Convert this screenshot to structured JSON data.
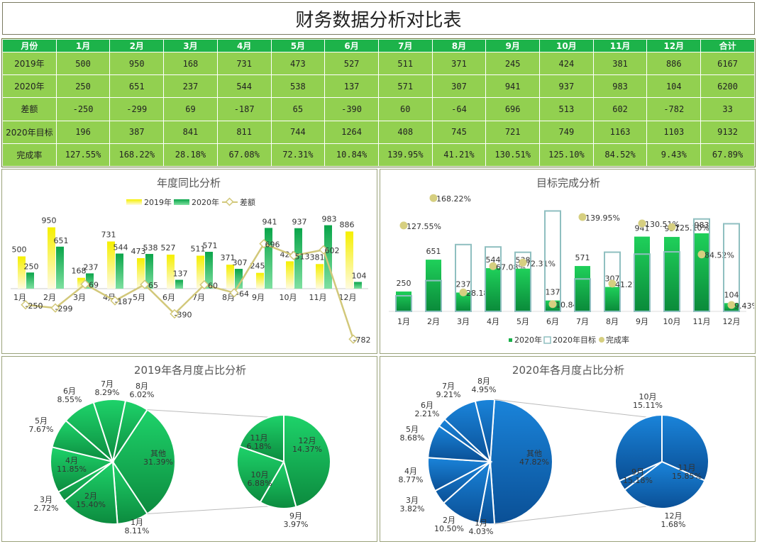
{
  "title": "财务数据分析对比表",
  "table": {
    "headers": [
      "月份",
      "1月",
      "2月",
      "3月",
      "4月",
      "5月",
      "6月",
      "7月",
      "8月",
      "9月",
      "10月",
      "11月",
      "12月",
      "合计"
    ],
    "rows": [
      {
        "label": "2019年",
        "values": [
          "500",
          "950",
          "168",
          "731",
          "473",
          "527",
          "511",
          "371",
          "245",
          "424",
          "381",
          "886",
          "6167"
        ]
      },
      {
        "label": "2020年",
        "values": [
          "250",
          "651",
          "237",
          "544",
          "538",
          "137",
          "571",
          "307",
          "941",
          "937",
          "983",
          "104",
          "6200"
        ]
      },
      {
        "label": "差额",
        "values": [
          "-250",
          "-299",
          "69",
          "-187",
          "65",
          "-390",
          "60",
          "-64",
          "696",
          "513",
          "602",
          "-782",
          "33"
        ]
      },
      {
        "label": "2020年目标",
        "values": [
          "196",
          "387",
          "841",
          "811",
          "744",
          "1264",
          "408",
          "745",
          "721",
          "749",
          "1163",
          "1103",
          "9132"
        ]
      },
      {
        "label": "完成率",
        "values": [
          "127.55%",
          "168.22%",
          "28.18%",
          "67.08%",
          "72.31%",
          "10.84%",
          "139.95%",
          "41.21%",
          "130.51%",
          "125.10%",
          "84.52%",
          "9.43%",
          "67.89%"
        ]
      }
    ]
  },
  "colors": {
    "green_header": "#1db34a",
    "green_cell": "#92d050",
    "yellow": "#f0e000",
    "green_bar": "#19b04a",
    "diff_line": "#d2c87a",
    "blue": "#0a6cc4"
  },
  "chart_data": [
    {
      "type": "bar",
      "title": "年度同比分析",
      "categories": [
        "1月",
        "2月",
        "3月",
        "4月",
        "5月",
        "6月",
        "7月",
        "8月",
        "9月",
        "10月",
        "11月",
        "12月"
      ],
      "series": [
        {
          "name": "2019年",
          "values": [
            500,
            950,
            168,
            731,
            473,
            527,
            511,
            371,
            245,
            424,
            381,
            886
          ]
        },
        {
          "name": "2020年",
          "values": [
            250,
            651,
            237,
            544,
            538,
            137,
            571,
            307,
            941,
            937,
            983,
            104
          ]
        },
        {
          "name": "差额",
          "type": "line",
          "values": [
            -250,
            -299,
            69,
            -187,
            65,
            -390,
            60,
            -64,
            696,
            513,
            602,
            -782
          ]
        }
      ],
      "ylim": [
        -800,
        1000
      ],
      "legend": "top"
    },
    {
      "type": "bar",
      "title": "目标完成分析",
      "categories": [
        "1月",
        "2月",
        "3月",
        "4月",
        "5月",
        "6月",
        "7月",
        "8月",
        "9月",
        "10月",
        "11月",
        "12月"
      ],
      "series": [
        {
          "name": "2020年",
          "values": [
            250,
            651,
            237,
            544,
            538,
            137,
            571,
            307,
            941,
            937,
            983,
            104
          ]
        },
        {
          "name": "2020年目标",
          "values": [
            196,
            387,
            841,
            811,
            744,
            1264,
            408,
            745,
            721,
            749,
            1163,
            1103
          ]
        },
        {
          "name": "完成率",
          "type": "scatter",
          "values": [
            1.2755,
            1.6822,
            0.2818,
            0.6708,
            0.7231,
            0.1084,
            1.3995,
            0.4121,
            1.3051,
            1.251,
            0.8452,
            0.0943
          ],
          "labels": [
            "127.55%",
            "168.22%",
            "28.18%",
            "67.08%",
            "72.31%",
            "10.84%",
            "139.95%",
            "41.21%",
            "130.51%",
            "125.10%",
            "84.52%",
            "9.43%"
          ]
        }
      ],
      "legend": "bottom"
    },
    {
      "type": "pie",
      "title": "2019年各月度占比分析",
      "main": [
        {
          "label": "其他",
          "value": 31.39,
          "pct": "31.39%"
        },
        {
          "label": "1月",
          "value": 8.11,
          "pct": "8.11%"
        },
        {
          "label": "2月",
          "value": 15.4,
          "pct": "15.40%"
        },
        {
          "label": "3月",
          "value": 2.72,
          "pct": "2.72%"
        },
        {
          "label": "4月",
          "value": 11.85,
          "pct": "11.85%"
        },
        {
          "label": "5月",
          "value": 7.67,
          "pct": "7.67%"
        },
        {
          "label": "6月",
          "value": 8.55,
          "pct": "8.55%"
        },
        {
          "label": "7月",
          "value": 8.29,
          "pct": "8.29%"
        },
        {
          "label": "8月",
          "value": 6.02,
          "pct": "6.02%"
        }
      ],
      "secondary": [
        {
          "label": "12月",
          "value": 14.37,
          "pct": "14.37%"
        },
        {
          "label": "9月",
          "value": 3.97,
          "pct": "3.97%"
        },
        {
          "label": "10月",
          "value": 6.88,
          "pct": "6.88%"
        },
        {
          "label": "11月",
          "value": 6.18,
          "pct": "6.18%"
        }
      ]
    },
    {
      "type": "pie",
      "title": "2020年各月度占比分析",
      "main": [
        {
          "label": "其他",
          "value": 47.82,
          "pct": "47.82%"
        },
        {
          "label": "1月",
          "value": 4.03,
          "pct": "4.03%"
        },
        {
          "label": "2月",
          "value": 10.5,
          "pct": "10.50%"
        },
        {
          "label": "3月",
          "value": 3.82,
          "pct": "3.82%"
        },
        {
          "label": "4月",
          "value": 8.77,
          "pct": "8.77%"
        },
        {
          "label": "5月",
          "value": 8.68,
          "pct": "8.68%"
        },
        {
          "label": "6月",
          "value": 2.21,
          "pct": "2.21%"
        },
        {
          "label": "7月",
          "value": 9.21,
          "pct": "9.21%"
        },
        {
          "label": "8月",
          "value": 4.95,
          "pct": "4.95%"
        }
      ],
      "secondary": [
        {
          "label": "10月",
          "value": 15.11,
          "pct": "15.11%"
        },
        {
          "label": "11月",
          "value": 15.85,
          "pct": "15.85%"
        },
        {
          "label": "12月",
          "value": 1.68,
          "pct": "1.68%"
        },
        {
          "label": "9月",
          "value": 15.18,
          "pct": "15.18%"
        }
      ]
    }
  ]
}
